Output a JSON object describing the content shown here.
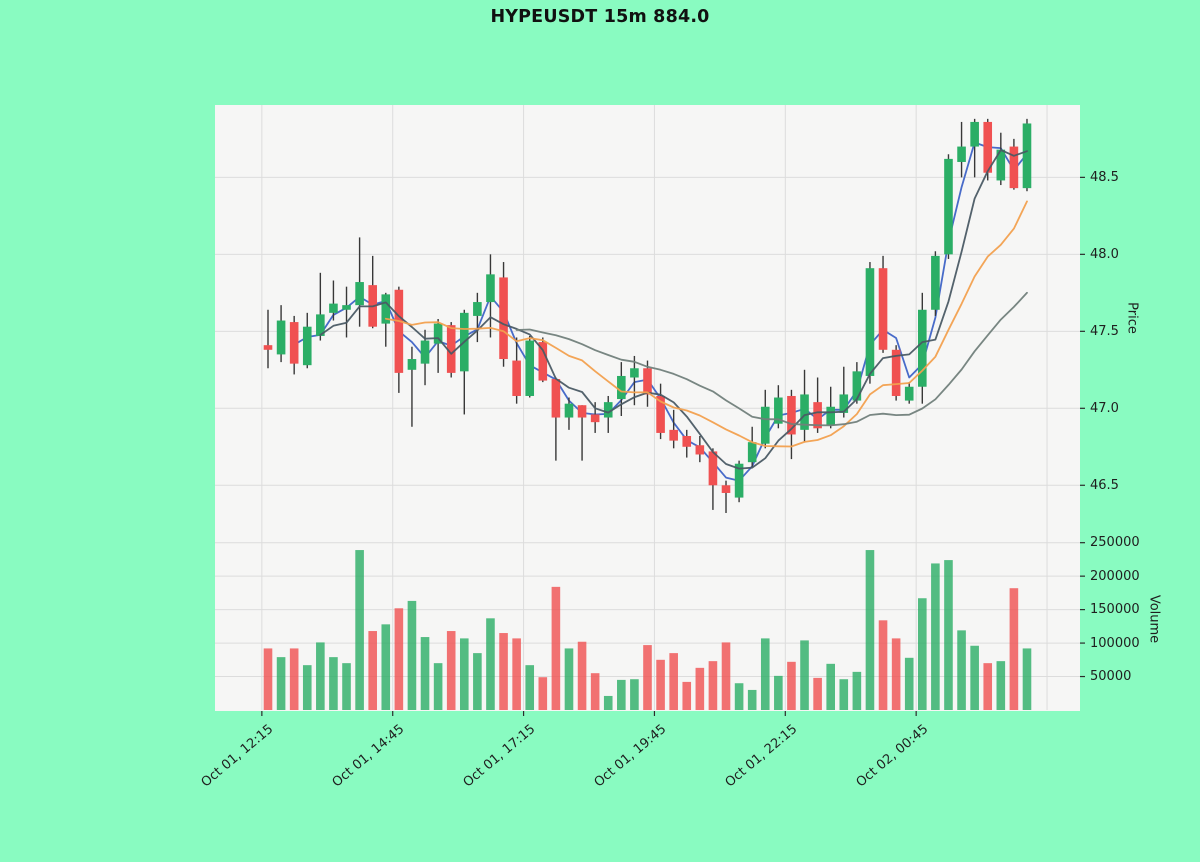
{
  "title": "HYPEUSDT 15m 884.0",
  "axes": {
    "price_label": "Price",
    "volume_label": "Volume"
  },
  "colors": {
    "figure_background": "#89FBC1",
    "panel_background": "#f6f6f5",
    "grid": "#dcdcdc",
    "up": "#2BAE66",
    "down": "#F05151",
    "wick": "#383838",
    "tick_text": "#1f1f1f",
    "title_text": "#111111"
  },
  "chart_data": {
    "type": "candlestick",
    "symbol": "HYPEUSDT",
    "interval": "15m",
    "title": "HYPEUSDT 15m 884.0",
    "legend_position": "none",
    "grid": true,
    "price_axis": {
      "side": "right",
      "ticks": [
        46.5,
        47.0,
        47.5,
        48.0,
        48.5
      ],
      "range": [
        46.19,
        48.97
      ]
    },
    "volume_axis": {
      "side": "right",
      "ticks": [
        50000,
        100000,
        150000,
        200000,
        250000
      ],
      "range": [
        0,
        260000
      ]
    },
    "x_tick_labels": [
      {
        "index": 0,
        "label": "Oct 01, 12:15"
      },
      {
        "index": 10,
        "label": "Oct 01, 14:45"
      },
      {
        "index": 20,
        "label": "Oct 01, 17:15"
      },
      {
        "index": 30,
        "label": "Oct 01, 19:45"
      },
      {
        "index": 40,
        "label": "Oct 01, 22:15"
      },
      {
        "index": 50,
        "label": "Oct 02, 00:45"
      }
    ],
    "moving_averages": [
      {
        "name": "MA3",
        "period": 3,
        "color": "#3E63C6",
        "under_candles": true
      },
      {
        "name": "MA5",
        "period": 5,
        "color": "#4A5A64",
        "under_candles": false
      },
      {
        "name": "MA10",
        "period": 10,
        "color": "#F2A04E",
        "under_candles": false
      },
      {
        "name": "MA20",
        "period": 20,
        "color": "#71807B",
        "under_candles": false
      }
    ],
    "columns": [
      "time",
      "open",
      "high",
      "low",
      "close",
      "volume"
    ],
    "candles": [
      [
        "Oct 01 12:15",
        47.41,
        47.64,
        47.26,
        47.38,
        92000
      ],
      [
        "Oct 01 12:30",
        47.35,
        47.67,
        47.3,
        47.57,
        79000
      ],
      [
        "Oct 01 12:45",
        47.56,
        47.6,
        47.22,
        47.29,
        92000
      ],
      [
        "Oct 01 13:00",
        47.28,
        47.62,
        47.26,
        47.53,
        67000
      ],
      [
        "Oct 01 13:15",
        47.47,
        47.88,
        47.44,
        47.61,
        101000
      ],
      [
        "Oct 01 13:30",
        47.62,
        47.83,
        47.57,
        47.68,
        79000
      ],
      [
        "Oct 01 13:45",
        47.64,
        47.79,
        47.46,
        47.67,
        70000
      ],
      [
        "Oct 01 14:00",
        47.67,
        48.11,
        47.53,
        47.82,
        239000
      ],
      [
        "Oct 01 14:15",
        47.8,
        47.99,
        47.52,
        47.53,
        118000
      ],
      [
        "Oct 01 14:30",
        47.55,
        47.75,
        47.4,
        47.74,
        128000
      ],
      [
        "Oct 01 14:45",
        47.77,
        47.79,
        47.1,
        47.23,
        152000
      ],
      [
        "Oct 01 15:00",
        47.25,
        47.4,
        46.88,
        47.32,
        163000
      ],
      [
        "Oct 01 15:15",
        47.29,
        47.51,
        47.15,
        47.44,
        109000
      ],
      [
        "Oct 01 15:30",
        47.42,
        47.58,
        47.23,
        47.55,
        70000
      ],
      [
        "Oct 01 15:45",
        47.54,
        47.56,
        47.2,
        47.23,
        118000
      ],
      [
        "Oct 01 16:00",
        47.24,
        47.64,
        46.96,
        47.62,
        107000
      ],
      [
        "Oct 01 16:15",
        47.6,
        47.75,
        47.43,
        47.69,
        85000
      ],
      [
        "Oct 01 16:30",
        47.69,
        48.0,
        47.46,
        47.87,
        137000
      ],
      [
        "Oct 01 16:45",
        47.85,
        47.95,
        47.27,
        47.32,
        115000
      ],
      [
        "Oct 01 17:00",
        47.31,
        47.46,
        47.03,
        47.08,
        107000
      ],
      [
        "Oct 01 17:15",
        47.08,
        47.47,
        47.07,
        47.44,
        67000
      ],
      [
        "Oct 01 17:30",
        47.43,
        47.46,
        47.17,
        47.18,
        49000
      ],
      [
        "Oct 01 17:45",
        47.19,
        47.2,
        46.66,
        46.94,
        184000
      ],
      [
        "Oct 01 18:00",
        46.94,
        47.07,
        46.86,
        47.03,
        92000
      ],
      [
        "Oct 01 18:15",
        47.02,
        47.02,
        46.66,
        46.94,
        102000
      ],
      [
        "Oct 01 18:30",
        46.96,
        47.04,
        46.84,
        46.91,
        55000
      ],
      [
        "Oct 01 18:45",
        46.94,
        47.08,
        46.84,
        47.04,
        21000
      ],
      [
        "Oct 01 19:00",
        47.06,
        47.3,
        46.95,
        47.21,
        45000
      ],
      [
        "Oct 01 19:15",
        47.2,
        47.34,
        47.02,
        47.26,
        46000
      ],
      [
        "Oct 01 19:30",
        47.26,
        47.31,
        47.01,
        47.09,
        97000
      ],
      [
        "Oct 01 19:45",
        47.08,
        47.16,
        46.8,
        46.84,
        75000
      ],
      [
        "Oct 01 20:00",
        46.86,
        46.99,
        46.74,
        46.79,
        85000
      ],
      [
        "Oct 01 20:15",
        46.82,
        46.86,
        46.68,
        46.75,
        42000
      ],
      [
        "Oct 01 20:30",
        46.76,
        46.82,
        46.65,
        46.7,
        63000
      ],
      [
        "Oct 01 20:45",
        46.72,
        46.74,
        46.34,
        46.5,
        73000
      ],
      [
        "Oct 01 21:00",
        46.5,
        46.53,
        46.32,
        46.45,
        101000
      ],
      [
        "Oct 01 21:15",
        46.42,
        46.66,
        46.39,
        46.64,
        40000
      ],
      [
        "Oct 01 21:30",
        46.65,
        46.88,
        46.62,
        46.78,
        30000
      ],
      [
        "Oct 01 21:45",
        46.77,
        47.12,
        46.74,
        47.01,
        107000
      ],
      [
        "Oct 01 22:00",
        46.9,
        47.15,
        46.87,
        47.07,
        51000
      ],
      [
        "Oct 01 22:15",
        47.08,
        47.12,
        46.67,
        46.83,
        72000
      ],
      [
        "Oct 01 22:30",
        46.86,
        47.25,
        46.78,
        47.09,
        104000
      ],
      [
        "Oct 01 22:45",
        47.04,
        47.2,
        46.84,
        46.87,
        48000
      ],
      [
        "Oct 01 23:00",
        46.89,
        47.14,
        46.87,
        47.01,
        69000
      ],
      [
        "Oct 01 23:15",
        46.97,
        47.27,
        46.94,
        47.09,
        46000
      ],
      [
        "Oct 01 23:30",
        47.05,
        47.3,
        47.03,
        47.24,
        57000
      ],
      [
        "Oct 01 23:45",
        47.21,
        47.95,
        47.16,
        47.91,
        239000
      ],
      [
        "Oct 02 00:00",
        47.91,
        47.99,
        47.36,
        47.38,
        134000
      ],
      [
        "Oct 02 00:15",
        47.38,
        47.41,
        47.05,
        47.08,
        107000
      ],
      [
        "Oct 02 00:30",
        47.05,
        47.17,
        47.03,
        47.14,
        78000
      ],
      [
        "Oct 02 00:45",
        47.14,
        47.75,
        47.03,
        47.64,
        167000
      ],
      [
        "Oct 02 01:00",
        47.64,
        48.02,
        47.6,
        47.99,
        219000
      ],
      [
        "Oct 02 01:15",
        48.0,
        48.65,
        47.97,
        48.62,
        224000
      ],
      [
        "Oct 02 01:30",
        48.6,
        48.86,
        48.5,
        48.7,
        119000
      ],
      [
        "Oct 02 01:45",
        48.7,
        48.88,
        48.5,
        48.86,
        96000
      ],
      [
        "Oct 02 02:00",
        48.86,
        48.88,
        48.48,
        48.53,
        70000
      ],
      [
        "Oct 02 02:15",
        48.48,
        48.79,
        48.45,
        48.68,
        73000
      ],
      [
        "Oct 02 02:30",
        48.7,
        48.75,
        48.42,
        48.43,
        182000
      ],
      [
        "Oct 02 02:45",
        48.43,
        48.88,
        48.41,
        48.85,
        92000
      ]
    ]
  }
}
